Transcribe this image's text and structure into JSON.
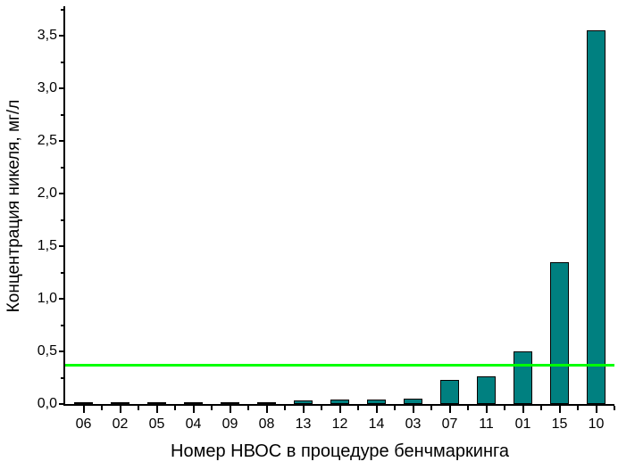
{
  "chart_data": {
    "type": "bar",
    "title": "",
    "xlabel": "Номер НВОС в процедуре бенчмаркинга",
    "ylabel": "Концентрация никеля, мг/л",
    "categories": [
      "06",
      "02",
      "05",
      "04",
      "09",
      "08",
      "13",
      "12",
      "14",
      "03",
      "07",
      "11",
      "01",
      "15",
      "10"
    ],
    "values": [
      0.02,
      0.02,
      0.02,
      0.02,
      0.02,
      0.02,
      0.03,
      0.04,
      0.04,
      0.05,
      0.23,
      0.26,
      0.5,
      1.35,
      3.55
    ],
    "ylim": [
      0,
      3.78
    ],
    "y_major_ticks": [
      0,
      0.5,
      1.0,
      1.5,
      2.0,
      2.5,
      3.0,
      3.5
    ],
    "y_tick_labels": [
      "0,0",
      "0,5",
      "1,0",
      "1,5",
      "2,0",
      "2,5",
      "3,0",
      "3,5"
    ],
    "y_minor_tick_step": 0.25,
    "reference_line": {
      "value": 0.37,
      "color": "#00ff00"
    },
    "bar_fill_color": "#008080",
    "bar_border_color": "#000000",
    "axis_color": "#000000",
    "background_color": "#ffffff",
    "grid": false,
    "legend": null
  }
}
